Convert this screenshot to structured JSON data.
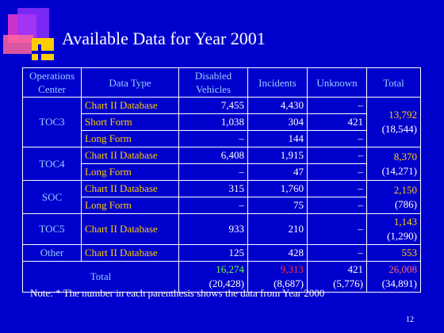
{
  "title": "Available Data for Year 2001",
  "table": {
    "header": [
      "Operations Center",
      "Data Type",
      "Disabled Vehicles",
      "Incidents",
      "Unknown",
      "Total"
    ],
    "groups": [
      {
        "center": "TOC3",
        "rows": [
          [
            "Chart II Database",
            "7,455",
            "4,430",
            "–"
          ],
          [
            "Short Form",
            "1,038",
            "304",
            "421"
          ],
          [
            "Long Form",
            "–",
            "144",
            "–"
          ]
        ],
        "total": "13,792",
        "prior": "(18,544)"
      },
      {
        "center": "TOC4",
        "rows": [
          [
            "Chart II Database",
            "6,408",
            "1,915",
            "–"
          ],
          [
            "Long Form",
            "–",
            "47",
            "–"
          ]
        ],
        "total": "8,370",
        "prior": "(14,271)"
      },
      {
        "center": "SOC",
        "rows": [
          [
            "Chart II Database",
            "315",
            "1,760",
            "–"
          ],
          [
            "Long Form",
            "–",
            "75",
            "–"
          ]
        ],
        "total": "2,150",
        "prior": "(786)"
      },
      {
        "center": "TOC5",
        "rows": [
          [
            "Chart II Database",
            "933",
            "210",
            "–"
          ]
        ],
        "total": "1,143",
        "prior": "(1,290)"
      },
      {
        "center": "Other",
        "rows": [
          [
            "Chart II Database",
            "125",
            "428",
            "–"
          ]
        ],
        "total": "553"
      }
    ],
    "total_row": {
      "label": "Total",
      "cells": [
        {
          "value": "16,274",
          "prior": "(20,428)"
        },
        {
          "value": "9,313",
          "prior": "(8,687)"
        },
        {
          "value": "421",
          "prior": "(5,776)"
        },
        {
          "value": "26,008",
          "prior": "(34,891)"
        }
      ]
    }
  },
  "note": "Note: * The number in each parenthesis shows the data from Year 2000",
  "page_number": "12"
}
